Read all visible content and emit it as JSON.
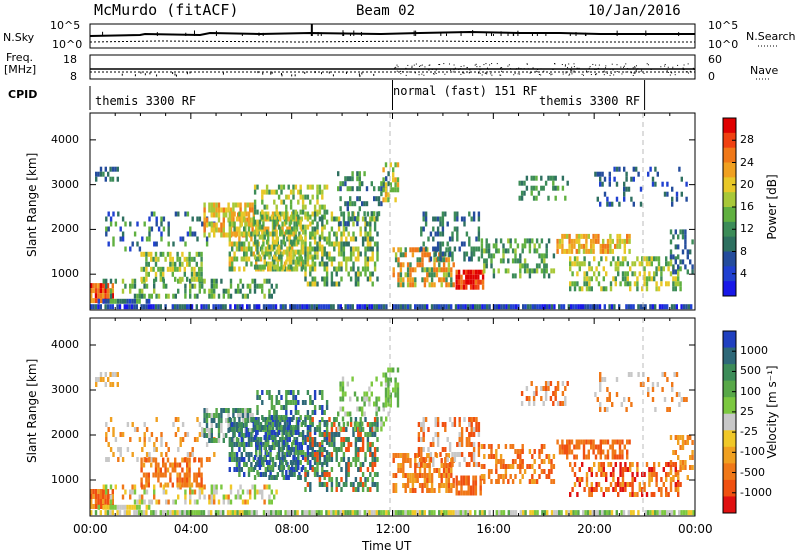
{
  "header": {
    "station": "McMurdo (fitACF)",
    "beam": "Beam 02",
    "date": "10/Jan/2016"
  },
  "top_panels": {
    "nsky_label": "N.Sky",
    "nsky_ticks": [
      "10^5",
      "10^0"
    ],
    "nsearch_label": "N.Search",
    "nsearch_ticks": [
      "10^5",
      "10^0"
    ],
    "freq_label_1": "Freq.",
    "freq_label_2": "[MHz]",
    "freq_ticks": [
      "18",
      "8"
    ],
    "nave_label": "Nave",
    "nave_ticks": [
      "60",
      "0"
    ],
    "cpid_label": "CPID",
    "cpid_segments": [
      {
        "label": "themis 3300 RF",
        "start_hour": 0,
        "end_hour": 12
      },
      {
        "label": "normal (fast) 151 RF",
        "start_hour": 12,
        "end_hour": 22
      },
      {
        "label": "themis 3300 RF",
        "start_hour": 22,
        "end_hour": 24
      }
    ],
    "cpid_label_positions_hours": [
      0.3,
      12.1,
      18.1
    ]
  },
  "chart_data": [
    {
      "type": "heatmap",
      "panel": "power",
      "ylabel": "Slant Range [km]",
      "xlabel": "",
      "x_range_hours": [
        0,
        24
      ],
      "ylim": [
        200,
        4600
      ],
      "y_ticks": [
        1000,
        2000,
        3000,
        4000
      ],
      "colorbar": {
        "label": "Power [dB]",
        "ticks": [
          "28",
          "24",
          "20",
          "16",
          "12",
          "8",
          "4"
        ],
        "colors": [
          "#e00000",
          "#f04010",
          "#f07818",
          "#f0a020",
          "#e8c828",
          "#a8c838",
          "#60b040",
          "#3c8c58",
          "#2e7060",
          "#244c9c",
          "#2040d0",
          "#1818e8"
        ]
      }
    },
    {
      "type": "heatmap",
      "panel": "velocity",
      "ylabel": "Slant Range [km]",
      "xlabel": "Time UT",
      "x_range_hours": [
        0,
        24
      ],
      "x_ticks": [
        "00:00",
        "04:00",
        "08:00",
        "12:00",
        "16:00",
        "20:00",
        "00:00"
      ],
      "ylim": [
        200,
        4600
      ],
      "y_ticks": [
        1000,
        2000,
        3000,
        4000
      ],
      "colorbar": {
        "label": "Velocity [m s⁻¹]",
        "ticks": [
          "1000",
          "500",
          "100",
          "25",
          "-25",
          "-100",
          "-500",
          "-1000"
        ],
        "colors": [
          "#2040c0",
          "#2e6878",
          "#3c8c58",
          "#58a848",
          "#7cc840",
          "#c8c8c8",
          "#f0c828",
          "#f0a020",
          "#f07818",
          "#f05010",
          "#e01010"
        ]
      }
    }
  ]
}
